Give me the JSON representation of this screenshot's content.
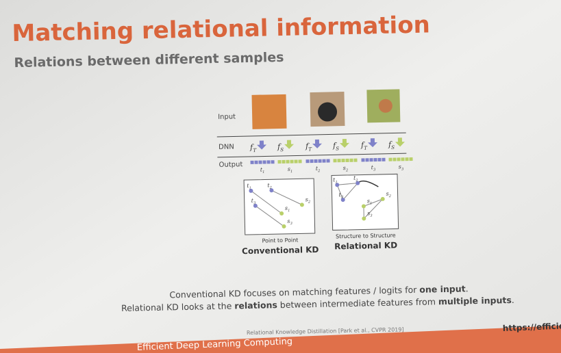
{
  "slide": {
    "title": "Matching relational information",
    "subtitle": "Relations between different samples",
    "figure": {
      "row_labels": [
        "Input",
        "DNN",
        "Output"
      ],
      "dnn_labels": [
        {
          "base": "f",
          "sub": "T"
        },
        {
          "base": "f",
          "sub": "S"
        },
        {
          "base": "f",
          "sub": "T"
        },
        {
          "base": "f",
          "sub": "S"
        },
        {
          "base": "f",
          "sub": "T"
        },
        {
          "base": "f",
          "sub": "S"
        }
      ],
      "output_labels": [
        {
          "base": "t",
          "sub": "1"
        },
        {
          "base": "s",
          "sub": "1"
        },
        {
          "base": "t",
          "sub": "2"
        },
        {
          "base": "s",
          "sub": "2"
        },
        {
          "base": "t",
          "sub": "3"
        },
        {
          "base": "s",
          "sub": "3"
        }
      ],
      "panels": [
        {
          "method": "Point to Point",
          "name": "Conventional KD",
          "points": [
            {
              "base": "t",
              "sub": "1"
            },
            {
              "base": "t",
              "sub": "2"
            },
            {
              "base": "t",
              "sub": "3"
            },
            {
              "base": "s",
              "sub": "2"
            },
            {
              "base": "s",
              "sub": "1"
            },
            {
              "base": "s",
              "sub": "3"
            }
          ]
        },
        {
          "method": "Structure to Structure",
          "name": "Relational KD",
          "points": [
            {
              "base": "t",
              "sub": "1"
            },
            {
              "base": "t",
              "sub": "2"
            },
            {
              "base": "t",
              "sub": "3"
            },
            {
              "base": "s",
              "sub": "1"
            },
            {
              "base": "s",
              "sub": "2"
            },
            {
              "base": "s",
              "sub": "3"
            }
          ]
        }
      ]
    },
    "line1": [
      "Conventional KD focuses on matching features / logits for ",
      "one input",
      "."
    ],
    "line2": [
      "Relational KD looks at the ",
      "relations",
      " between intermediate features from ",
      "multiple inputs",
      "."
    ],
    "citation": "Relational Knowledge Distillation [Park et al., CVPR 2019]",
    "footer": "Efficient Deep Learning Computing",
    "url": "https://efficient"
  }
}
